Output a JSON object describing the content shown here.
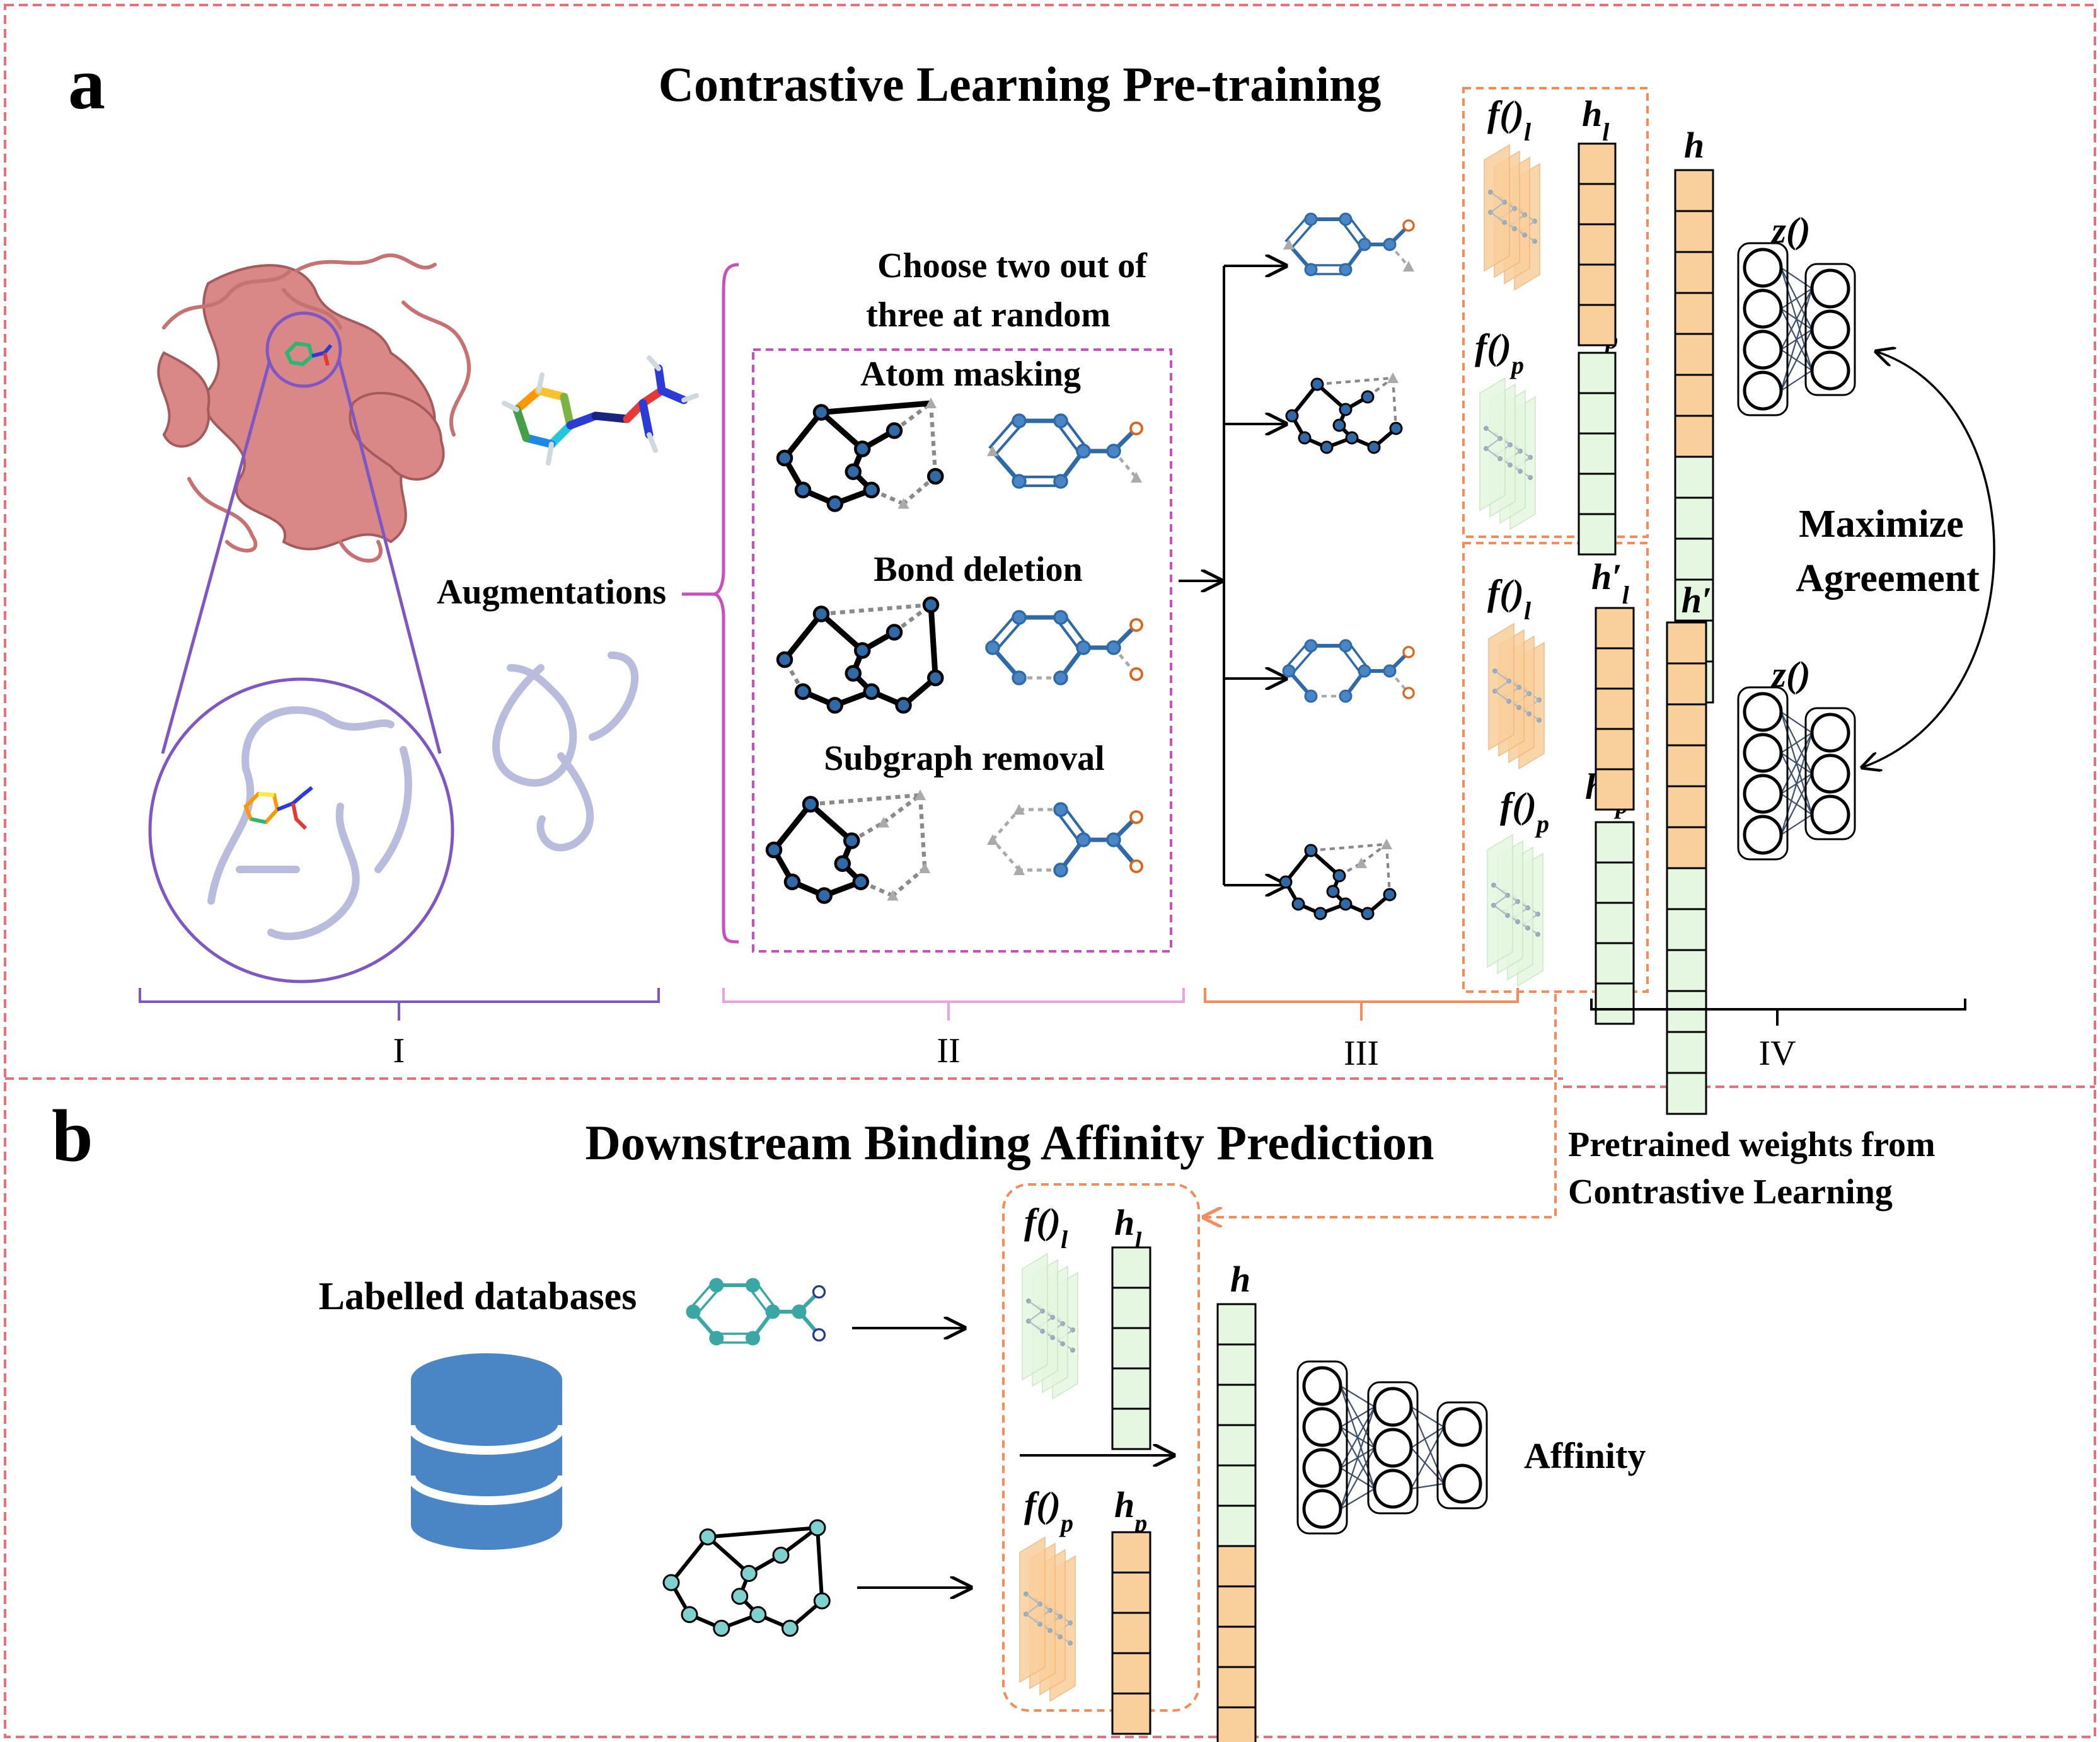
{
  "panel_a": {
    "letter": "a",
    "title": "Contrastive Learning Pre-training",
    "augmentations_label": "Augmentations",
    "choose_label_line1": "Choose two out of",
    "choose_label_line2": "three at random",
    "aug_atom_masking": "Atom masking",
    "aug_bond_deletion": "Bond deletion",
    "aug_subgraph_removal": "Subgraph removal",
    "section_I": "I",
    "section_II": "II",
    "section_III": "III",
    "section_IV": "IV",
    "f_l": "f()",
    "f_l_sub": "l",
    "f_p": "f()",
    "f_p_sub": "p",
    "h_l": "h",
    "h_l_sub": "l",
    "h_p": "h",
    "h_p_sub": "p",
    "h": "h",
    "h_prime": "h′",
    "h_prime_l": "h′",
    "h_prime_l_sub": "l",
    "h_prime_p": "h′",
    "h_prime_p_sub": "p",
    "z": "z()",
    "maximize_line1": "Maximize",
    "maximize_line2": "Agreement"
  },
  "panel_b": {
    "letter": "b",
    "title": "Downstream Binding Affinity Prediction",
    "pretrained_line1": "Pretrained weights from",
    "pretrained_line2": "Contrastive Learning",
    "labelled_databases": "Labelled databases",
    "affinity": "Affinity",
    "f_l": "f()",
    "f_l_sub": "l",
    "f_p": "f()",
    "f_p_sub": "p",
    "h_l": "h",
    "h_l_sub": "l",
    "h_p": "h",
    "h_p_sub": "p",
    "h": "h"
  },
  "colors": {
    "panel_border": "#e8707a",
    "purple": "#7e57c2",
    "magenta": "#c94fbf",
    "orange_dash": "#f28c5a",
    "ligand_fill": "#f9cf9c",
    "protein_fill": "#e6f7e1",
    "node_blue": "#2f6aa6",
    "node_teal": "#3aa7a5",
    "db_blue": "#4a86c5",
    "protein_pink": "#d98787"
  }
}
